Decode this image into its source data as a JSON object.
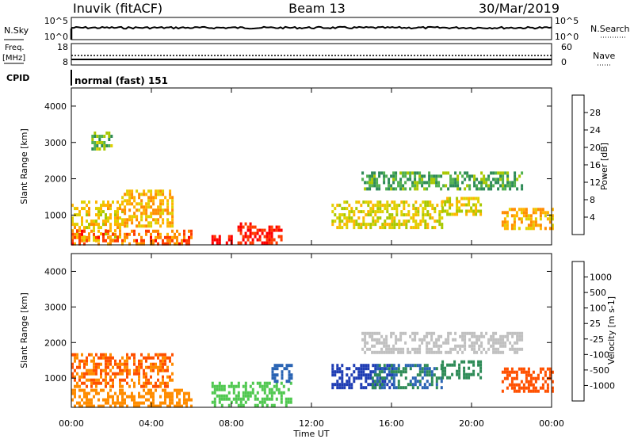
{
  "header": {
    "station": "Inuvik (fitACF)",
    "beam": "Beam 13",
    "date": "30/Mar/2019"
  },
  "panels": {
    "nsky": {
      "label": "N.Sky",
      "ytick_top": "10^5",
      "ytick_bottom": "10^0",
      "right_label": "N.Search",
      "right_tick_top": "10^5",
      "right_tick_bottom": "10^0"
    },
    "freq": {
      "label_line1": "Freq.",
      "label_line2": "[MHz]",
      "ytick_top": "18",
      "ytick_bottom": "8",
      "right_label": "Nave",
      "right_tick_top": "60",
      "right_tick_bottom": "0"
    },
    "cpid": {
      "label": "CPID",
      "text": "normal (fast) 151"
    }
  },
  "chart_data": [
    {
      "type": "heatmap",
      "parameter": "Power",
      "ylabel": "Slant Range [km]",
      "colorbar_label": "Power [dB]",
      "colorbar_ticks": [
        "28",
        "24",
        "20",
        "16",
        "12",
        "8",
        "4"
      ],
      "colors": [
        "#ff0000",
        "#ff3c00",
        "#ff8c00",
        "#ffb400",
        "#e0d000",
        "#a8c800",
        "#50b050",
        "#2e8b57",
        "#2a6090",
        "#0000ff"
      ],
      "yticks": [
        "4000",
        "3000",
        "2000",
        "1000"
      ],
      "ylim": [
        180,
        4500
      ],
      "x": [
        "00:00",
        "24:00"
      ],
      "regions": [
        {
          "t": [
            0.0,
            2.5
          ],
          "r": [
            300,
            1400
          ],
          "v": 18
        },
        {
          "t": [
            2.5,
            5.0
          ],
          "r": [
            700,
            1700
          ],
          "v": 20
        },
        {
          "t": [
            0.0,
            6.0
          ],
          "r": [
            200,
            600
          ],
          "v": 24
        },
        {
          "t": [
            1.0,
            2.0
          ],
          "r": [
            2800,
            3300
          ],
          "v": 12
        },
        {
          "t": [
            7.0,
            8.0
          ],
          "r": [
            200,
            450
          ],
          "v": 30
        },
        {
          "t": [
            8.3,
            10.5
          ],
          "r": [
            250,
            800
          ],
          "v": 28
        },
        {
          "t": [
            13.0,
            18.5
          ],
          "r": [
            700,
            1400
          ],
          "v": 16
        },
        {
          "t": [
            14.5,
            22.5
          ],
          "r": [
            1700,
            2200
          ],
          "v": 10
        },
        {
          "t": [
            18.5,
            20.5
          ],
          "r": [
            1000,
            1500
          ],
          "v": 16
        },
        {
          "t": [
            21.5,
            24.0
          ],
          "r": [
            600,
            1200
          ],
          "v": 20
        }
      ]
    },
    {
      "type": "heatmap",
      "parameter": "Velocity",
      "ylabel": "Slant Range [km]",
      "colorbar_label": "Velocity [m s-1]",
      "colorbar_ticks": [
        "1000",
        "500",
        "100",
        "25",
        "-25",
        "-100",
        "-500",
        "-1000"
      ],
      "colors": [
        "#1e3cb4",
        "#2a64b4",
        "#2e8b57",
        "#50c850",
        "#c0c0c0",
        "#ffb400",
        "#ff8c00",
        "#ff5000",
        "#ff0000"
      ],
      "yticks": [
        "4000",
        "3000",
        "2000",
        "1000"
      ],
      "ylim": [
        180,
        4500
      ],
      "xlabel": "Time UT",
      "xticks": [
        "00:00",
        "04:00",
        "08:00",
        "12:00",
        "16:00",
        "20:00",
        "00:00"
      ],
      "regions": [
        {
          "t": [
            0.0,
            6.0
          ],
          "r": [
            200,
            700
          ],
          "v": -200
        },
        {
          "t": [
            0.0,
            5.0
          ],
          "r": [
            800,
            1700
          ],
          "v": -300
        },
        {
          "t": [
            7.0,
            11.0
          ],
          "r": [
            200,
            900
          ],
          "v": 50
        },
        {
          "t": [
            10.0,
            11.0
          ],
          "r": [
            900,
            1400
          ],
          "v": 500
        },
        {
          "t": [
            13.0,
            16.0
          ],
          "r": [
            700,
            1400
          ],
          "v": 800
        },
        {
          "t": [
            15.0,
            18.5
          ],
          "r": [
            700,
            1400
          ],
          "v": 300
        },
        {
          "t": [
            14.5,
            22.5
          ],
          "r": [
            1700,
            2300
          ],
          "v": 0
        },
        {
          "t": [
            18.5,
            20.5
          ],
          "r": [
            1000,
            1500
          ],
          "v": 200
        },
        {
          "t": [
            21.5,
            24.0
          ],
          "r": [
            600,
            1300
          ],
          "v": -600
        }
      ]
    }
  ]
}
